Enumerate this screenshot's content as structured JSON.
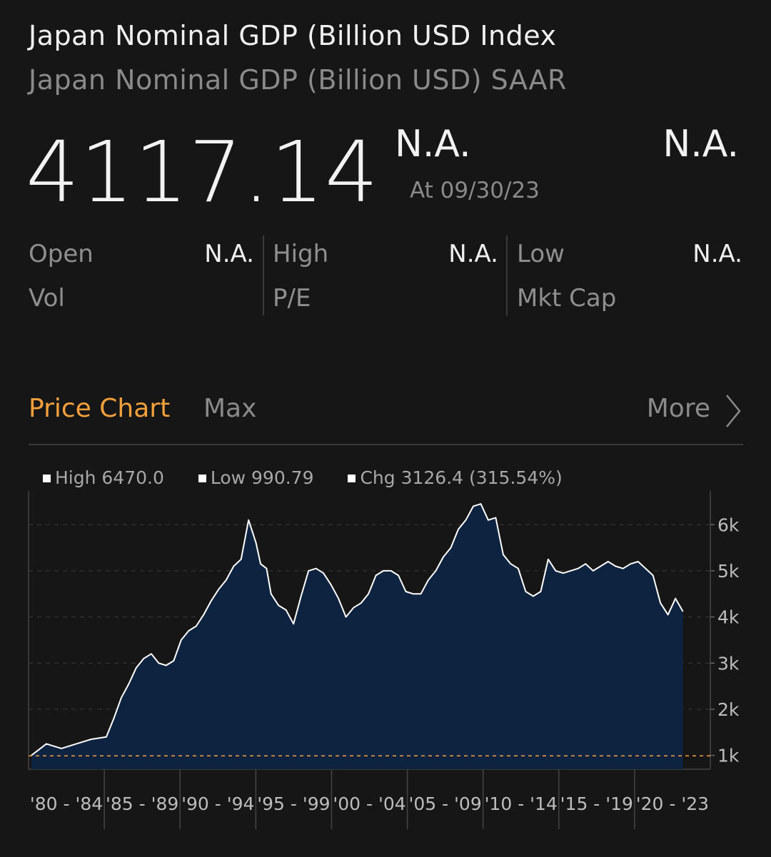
{
  "header": {
    "title": "Japan Nominal GDP (Billion USD Index",
    "subtitle": "Japan Nominal GDP (Billion USD) SAAR",
    "price": "4117.14",
    "change": "N.A.",
    "change_pct": "N.A.",
    "as_of": "At 09/30/23"
  },
  "stats": {
    "open_label": "Open",
    "open_value": "N.A.",
    "high_label": "High",
    "high_value": "N.A.",
    "low_label": "Low",
    "low_value": "N.A.",
    "vol_label": "Vol",
    "pe_label": "P/E",
    "mktcap_label": "Mkt Cap"
  },
  "tabs": {
    "active": "Price Chart",
    "range": "Max",
    "more": "More"
  },
  "legend": {
    "high": "High 6470.0",
    "low": "Low 990.79",
    "chg": "Chg 3126.4 (315.54%)"
  },
  "colors": {
    "accent": "#f4a03c",
    "area_fill": "#0d2340",
    "line": "#ffffff",
    "reference_line": "#f4a03c"
  },
  "chart_data": {
    "type": "area",
    "x_unit": "year",
    "categories": [
      "'80 - '84",
      "'85 - '89",
      "'90 - '94",
      "'95 - '99",
      "'00 - '04",
      "'05 - '09",
      "'10 - '14",
      "'15 - '19",
      "'20 - '23"
    ],
    "y_ticks": [
      "1k",
      "2k",
      "3k",
      "4k",
      "5k",
      "6k"
    ],
    "ylim": [
      700,
      6700
    ],
    "xlim": [
      1980,
      2024
    ],
    "reference_line": 990.79,
    "series": [
      {
        "x": [
          1980,
          1981,
          1982,
          1983,
          1984,
          1985,
          1985.5,
          1986,
          1986.5,
          1987,
          1987.5,
          1988,
          1988.5,
          1989,
          1989.5,
          1990,
          1990.5,
          1991,
          1991.5,
          1992,
          1992.5,
          1993,
          1993.5,
          1994,
          1994.5,
          1995,
          1995.3,
          1995.7,
          1996,
          1996.5,
          1997,
          1997.5,
          1998,
          1998.5,
          1999,
          1999.5,
          2000,
          2000.5,
          2001,
          2001.5,
          2002,
          2002.5,
          2003,
          2003.5,
          2004,
          2004.5,
          2005,
          2005.5,
          2006,
          2006.5,
          2007,
          2007.5,
          2008,
          2008.5,
          2009,
          2009.5,
          2010,
          2010.5,
          2011,
          2011.5,
          2012,
          2012.5,
          2013,
          2013.5,
          2014,
          2014.5,
          2015,
          2015.5,
          2016,
          2016.5,
          2017,
          2017.5,
          2018,
          2018.5,
          2019,
          2019.5,
          2020,
          2020.5,
          2021,
          2021.5,
          2022,
          2022.5,
          2023,
          2023.5
        ],
        "y": [
          1000,
          1250,
          1150,
          1250,
          1350,
          1400,
          1800,
          2250,
          2550,
          2900,
          3100,
          3200,
          3000,
          2950,
          3050,
          3500,
          3700,
          3800,
          4050,
          4350,
          4600,
          4800,
          5100,
          5250,
          6100,
          5600,
          5150,
          5050,
          4500,
          4250,
          4150,
          3850,
          4450,
          5000,
          5050,
          4950,
          4700,
          4400,
          4000,
          4200,
          4300,
          4500,
          4900,
          5000,
          5000,
          4900,
          4550,
          4500,
          4500,
          4800,
          5000,
          5300,
          5500,
          5900,
          6100,
          6400,
          6450,
          6100,
          6150,
          5350,
          5150,
          5050,
          4550,
          4450,
          4550,
          5250,
          5000,
          4950,
          5000,
          5050,
          5150,
          5000,
          5100,
          5200,
          5100,
          5050,
          5150,
          5200,
          5050,
          4900,
          4300,
          4050,
          4400,
          4117.14
        ]
      }
    ]
  }
}
